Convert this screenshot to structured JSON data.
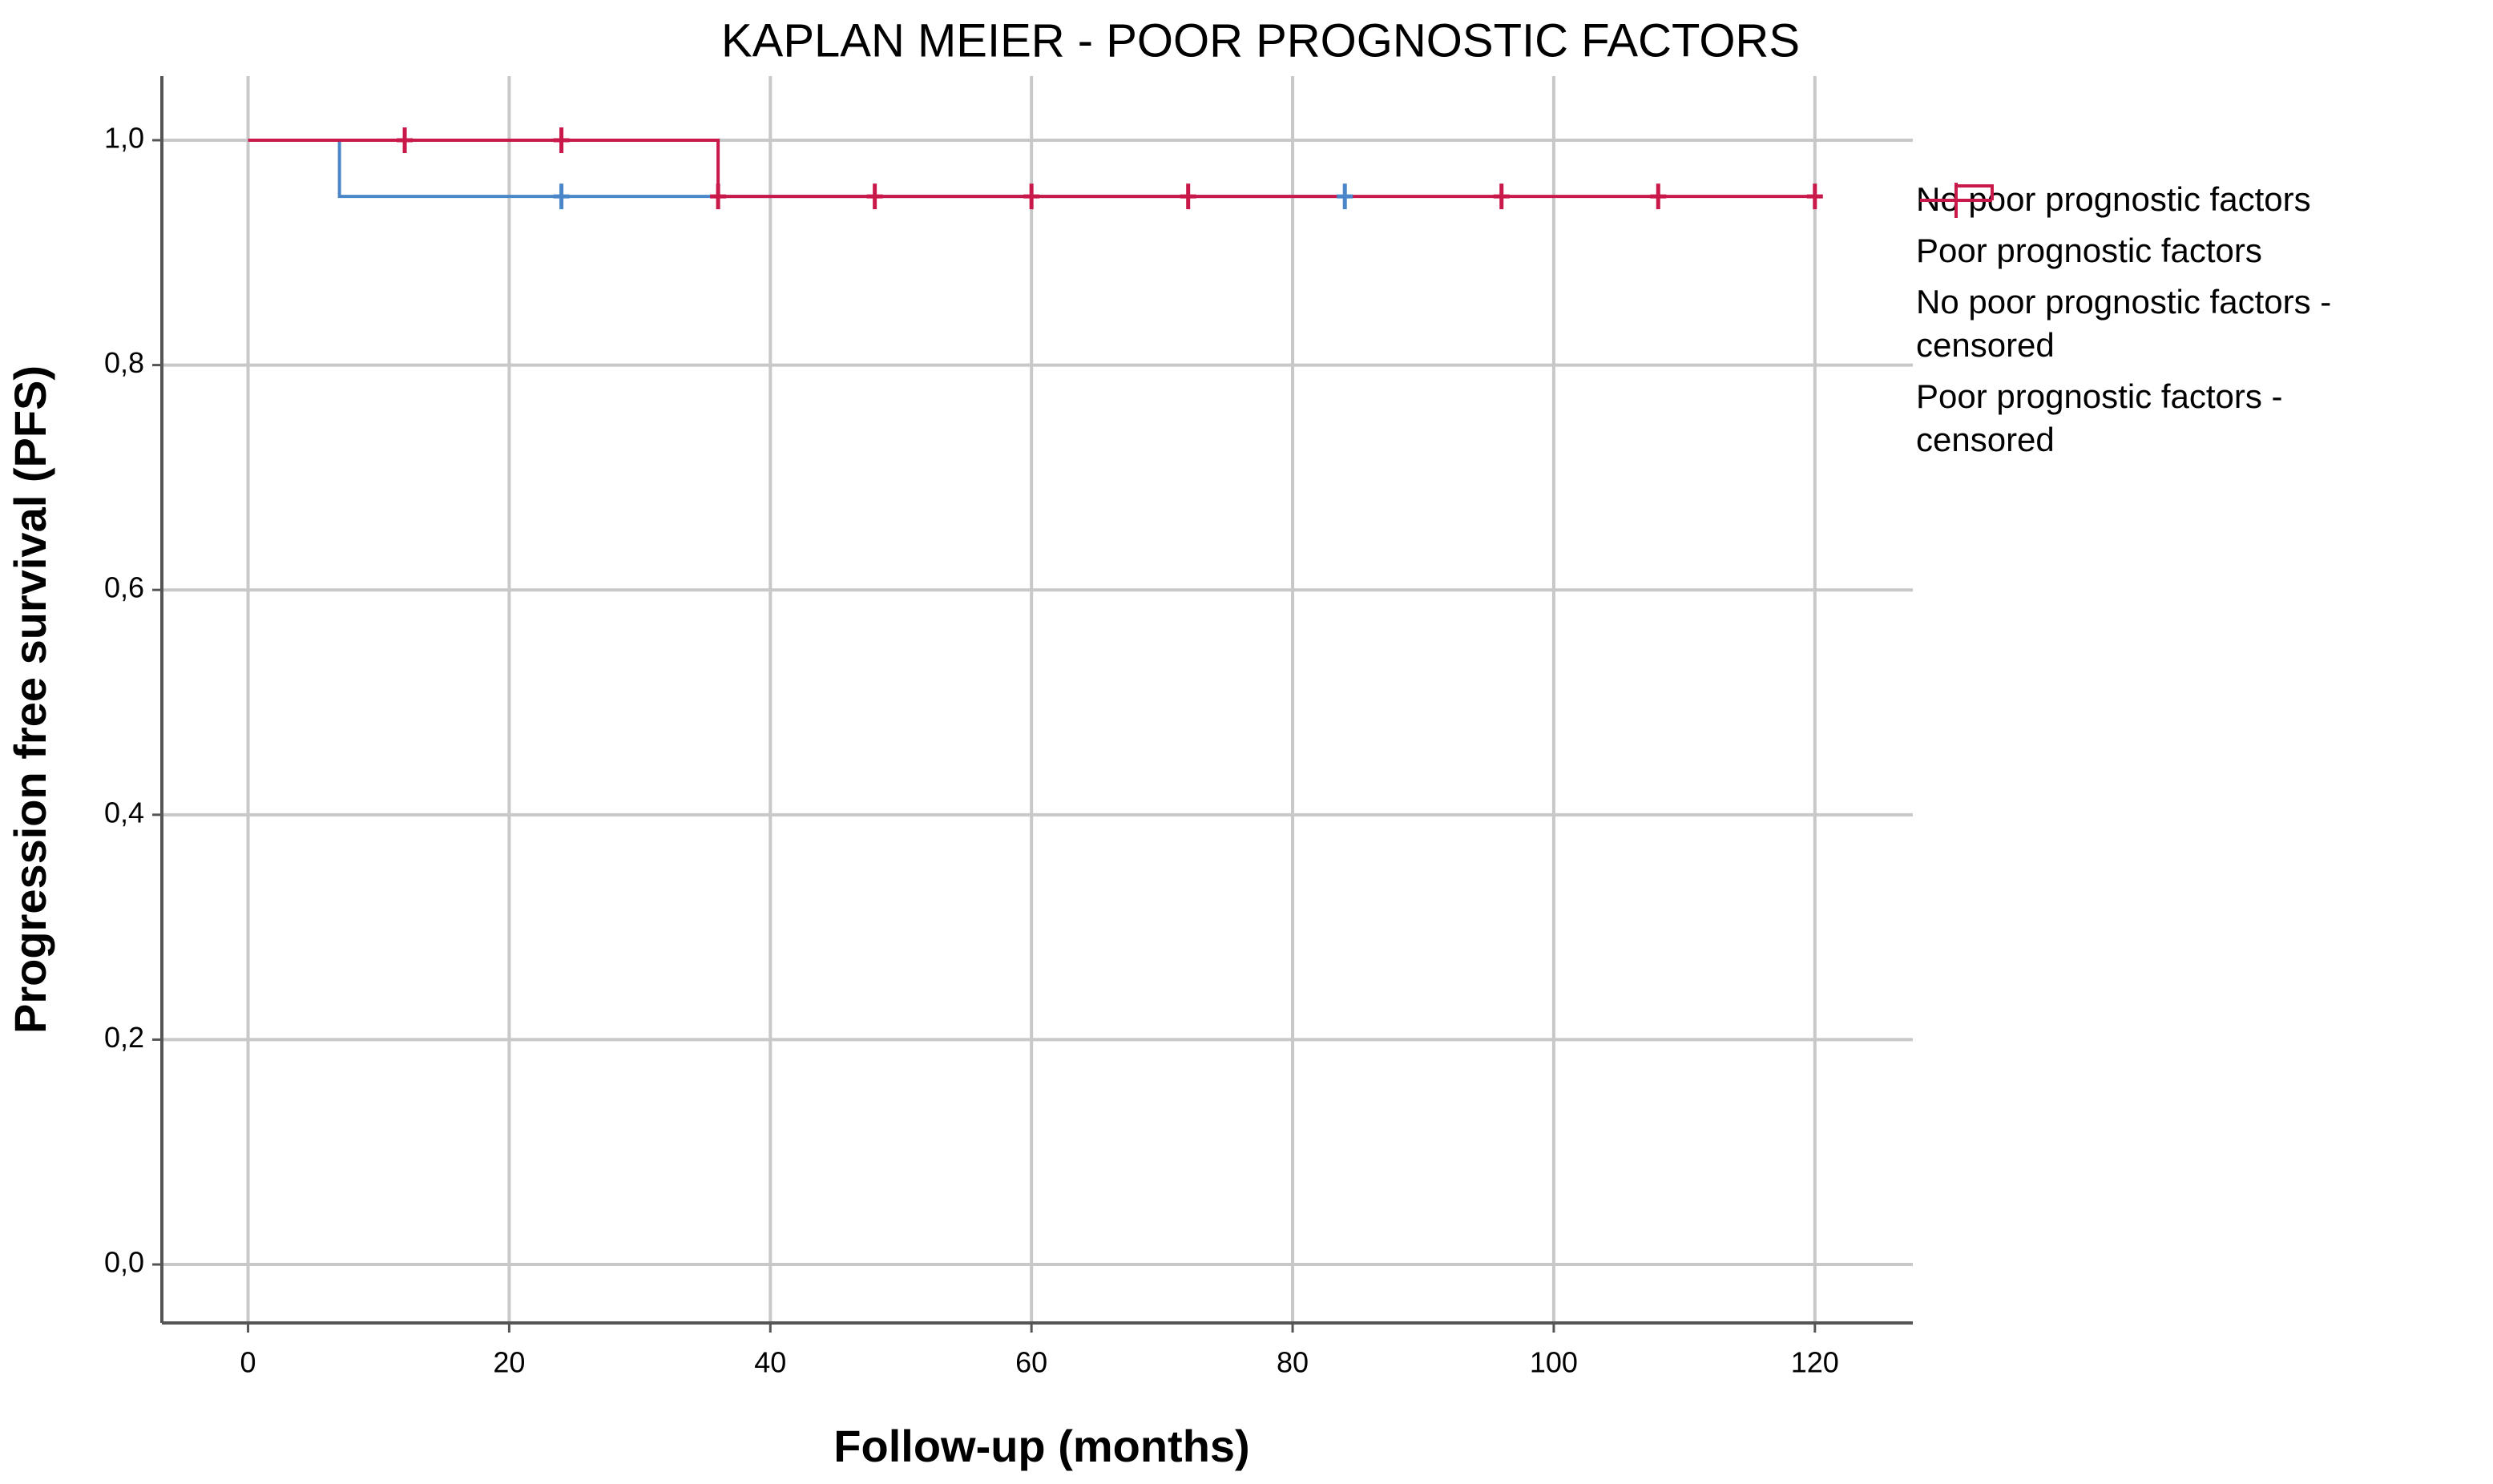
{
  "chart_data": {
    "type": "line",
    "step": true,
    "title": "KAPLAN MEIER - POOR PROGNOSTIC FACTORS",
    "x_label": "Follow-up (months)",
    "y_label": "Progression free survival (PFS)",
    "xlim": [
      -6.6,
      127.5
    ],
    "ylim": [
      -0.052,
      1.057
    ],
    "xticks": [
      0,
      20,
      40,
      60,
      80,
      100,
      120
    ],
    "yticks": [
      {
        "value": 0,
        "label": "0,0"
      },
      {
        "value": 0.2,
        "label": "0,2"
      },
      {
        "value": 0.4,
        "label": "0,4"
      },
      {
        "value": 0.6,
        "label": "0,6"
      },
      {
        "value": 0.8,
        "label": "0,8"
      },
      {
        "value": 1.0,
        "label": "1,0"
      }
    ],
    "grid": true,
    "legend": "right",
    "series": [
      {
        "name": "No poor prognostic factors",
        "color": "#4a86c8",
        "marker": "step",
        "x": [
          0,
          7,
          84
        ],
        "values": [
          1.0,
          0.95,
          0.95
        ]
      },
      {
        "name": "Poor prognostic factors",
        "color": "#c8194a",
        "marker": "step",
        "x": [
          0,
          36,
          120
        ],
        "values": [
          1.0,
          0.95,
          0.95
        ]
      },
      {
        "name": "No poor prognostic factors - censored",
        "color": "#4a86c8",
        "marker": "cross",
        "x": [
          24,
          84
        ],
        "values": [
          0.95,
          0.95
        ]
      },
      {
        "name": "Poor prognostic factors - censored",
        "color": "#c8194a",
        "marker": "cross",
        "x": [
          12,
          24,
          36,
          48,
          60,
          72,
          96,
          108,
          120
        ],
        "values": [
          1.0,
          1.0,
          0.95,
          0.95,
          0.95,
          0.95,
          0.95,
          0.95,
          0.95
        ]
      }
    ]
  }
}
